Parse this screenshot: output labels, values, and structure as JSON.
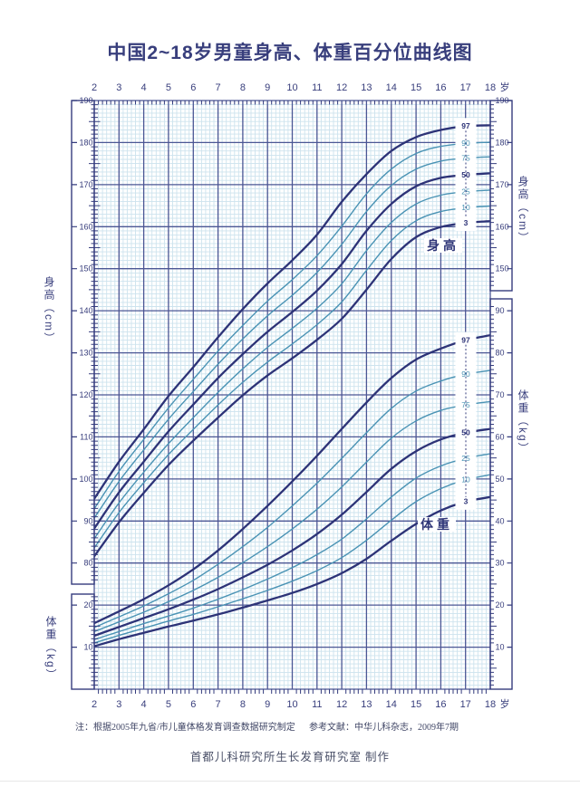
{
  "page": {
    "title": "中国2~18岁男童身高、体重百分位曲线图",
    "note_source": "注：根据2005年九省/市儿童体格发育调查数据研究制定",
    "note_reference": "参考文献：中华儿科杂志，2009年7期",
    "credit": "首都儿科研究所生长发育研究室  制作"
  },
  "colors": {
    "navy": "#353c7e",
    "grid_major": "#4b5694",
    "grid_fine": "#cde3ee",
    "curve_dark": "#2d3377",
    "curve_light": "#4a93b4",
    "text": "#383e7c",
    "note": "#3f4565",
    "background": "#ffffff"
  },
  "chart_data": {
    "type": "line",
    "title": "中国2~18岁男童身高、体重百分位曲线图",
    "x_label": "岁",
    "x_ticks": [
      2,
      3,
      4,
      5,
      6,
      7,
      8,
      9,
      10,
      11,
      12,
      13,
      14,
      15,
      16,
      17,
      18
    ],
    "x_unit": "岁",
    "percentile_curves": [
      "3",
      "10",
      "25",
      "50",
      "75",
      "90",
      "97"
    ],
    "emphasized_percentiles": [
      "3",
      "50",
      "97"
    ],
    "grid": "fine 1-unit light-blue mesh with dark major lines every year / every 10 units",
    "legend_position": "labels at right end of each curve, age 17",
    "height": {
      "axis_title": "身高（cm）",
      "annotation": "身高",
      "unit": "cm",
      "left_axis_labels": [
        190,
        180,
        170,
        160,
        150,
        140,
        130,
        120,
        110,
        100,
        90,
        80
      ],
      "right_axis_labels": [
        190,
        180,
        170,
        160,
        150
      ],
      "axis_range": [
        75,
        190
      ],
      "series": [
        {
          "name": "3",
          "values": [
            81.6,
            89.7,
            96.7,
            103.3,
            109.1,
            114.6,
            119.9,
            124.6,
            128.7,
            133.1,
            138.1,
            145.0,
            152.3,
            157.5,
            159.9,
            160.9,
            161.3
          ]
        },
        {
          "name": "10",
          "values": [
            83.6,
            92.0,
            99.1,
            105.8,
            111.8,
            117.6,
            123.0,
            127.8,
            132.1,
            136.7,
            142.1,
            149.6,
            156.7,
            161.4,
            163.6,
            164.5,
            164.9
          ]
        },
        {
          "name": "25",
          "values": [
            85.8,
            94.3,
            101.6,
            108.4,
            114.6,
            120.6,
            126.2,
            131.3,
            135.8,
            140.6,
            146.4,
            154.3,
            161.0,
            165.4,
            167.5,
            168.3,
            168.7
          ]
        },
        {
          "name": "50",
          "values": [
            88.2,
            96.8,
            104.1,
            111.3,
            117.7,
            124.0,
            129.7,
            135.0,
            139.7,
            144.8,
            151.1,
            159.0,
            165.4,
            169.6,
            171.6,
            172.3,
            172.7
          ]
        },
        {
          "name": "75",
          "values": [
            90.7,
            99.4,
            106.9,
            114.2,
            120.8,
            127.3,
            133.3,
            138.8,
            143.7,
            149.1,
            155.8,
            163.6,
            169.8,
            173.7,
            175.6,
            176.3,
            176.6
          ]
        },
        {
          "name": "90",
          "values": [
            92.9,
            101.8,
            109.4,
            116.9,
            123.7,
            130.4,
            136.5,
            142.3,
            147.4,
            153.1,
            160.1,
            167.8,
            173.7,
            177.4,
            179.1,
            179.8,
            180.1
          ]
        },
        {
          "name": "97",
          "values": [
            95.3,
            104.1,
            111.8,
            119.7,
            126.6,
            133.7,
            140.4,
            146.5,
            152.0,
            158.1,
            165.9,
            172.5,
            178.0,
            181.3,
            183.0,
            183.9,
            184.1
          ]
        }
      ]
    },
    "weight": {
      "axis_title": "体重（kg）",
      "annotation": "体重",
      "unit": "kg",
      "left_axis_labels": [
        20,
        10
      ],
      "right_axis_labels": [
        90,
        80,
        70,
        60,
        50,
        40,
        30,
        20,
        10
      ],
      "axis_range": [
        0,
        92
      ],
      "series": [
        {
          "name": "3",
          "values": [
            10.2,
            11.9,
            13.4,
            14.9,
            16.3,
            17.8,
            19.4,
            21.1,
            22.9,
            25.0,
            27.6,
            31.0,
            35.3,
            39.3,
            42.5,
            44.6,
            45.7
          ]
        },
        {
          "name": "10",
          "values": [
            11.0,
            12.8,
            14.5,
            16.2,
            17.8,
            19.6,
            21.5,
            23.5,
            25.7,
            28.2,
            31.3,
            35.4,
            40.2,
            44.6,
            47.7,
            49.8,
            51.0
          ]
        },
        {
          "name": "25",
          "values": [
            11.8,
            13.7,
            15.6,
            17.4,
            19.3,
            21.4,
            23.7,
            26.2,
            28.9,
            32.0,
            35.7,
            40.5,
            45.7,
            50.2,
            53.1,
            54.9,
            56.0
          ]
        },
        {
          "name": "50",
          "values": [
            12.7,
            14.8,
            16.9,
            19.0,
            21.3,
            23.8,
            26.6,
            29.6,
            33.0,
            36.9,
            41.5,
            46.9,
            52.4,
            56.6,
            59.4,
            61.0,
            61.9
          ]
        },
        {
          "name": "75",
          "values": [
            13.7,
            16.0,
            18.3,
            20.8,
            23.5,
            26.6,
            30.1,
            33.9,
            38.1,
            42.8,
            48.1,
            54.0,
            59.7,
            63.8,
            66.3,
            67.6,
            68.4
          ]
        },
        {
          "name": "90",
          "values": [
            14.7,
            17.2,
            19.8,
            22.7,
            25.9,
            29.7,
            33.9,
            38.5,
            43.6,
            49.0,
            54.9,
            61.0,
            66.8,
            70.9,
            73.3,
            74.9,
            75.8
          ]
        },
        {
          "name": "97",
          "values": [
            15.7,
            18.5,
            21.4,
            24.7,
            28.5,
            33.0,
            38.1,
            43.6,
            49.4,
            55.5,
            61.9,
            68.2,
            74.0,
            78.4,
            81.0,
            83.0,
            84.2
          ]
        }
      ]
    }
  }
}
